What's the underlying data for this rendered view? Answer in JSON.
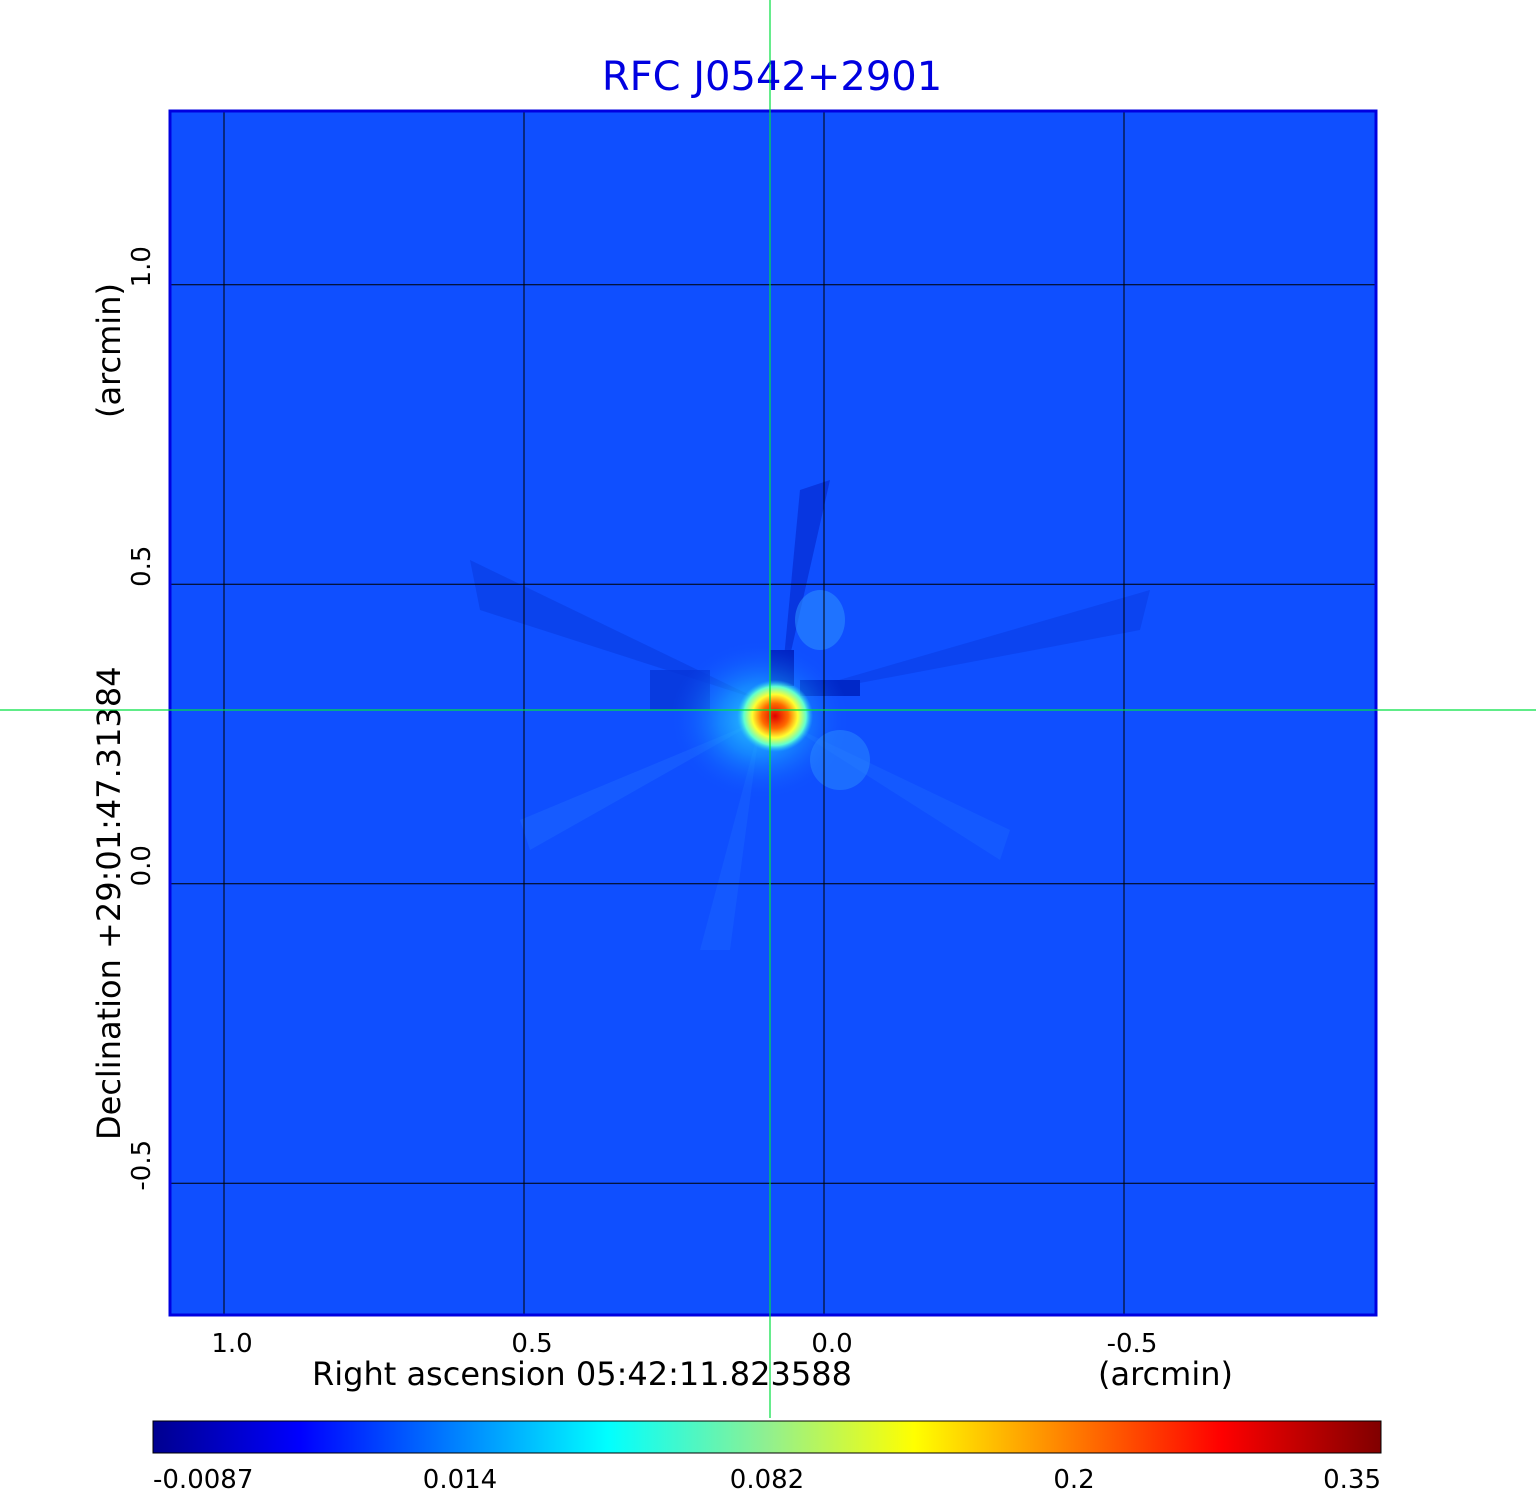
{
  "chart_data": {
    "type": "heatmap",
    "title": "RFC J0542+2901",
    "xlabel": "Right ascension  05:42:11.823588",
    "xunit": "(arcmin)",
    "ylabel": "Declination  +29:01:47.31384",
    "yunit": "(arcmin)",
    "xlim": [
      1.09,
      -0.92
    ],
    "ylim": [
      -0.72,
      1.29
    ],
    "x_ticks": [
      {
        "value": 1.0,
        "label": "1.0"
      },
      {
        "value": 0.5,
        "label": "0.5"
      },
      {
        "value": 0.0,
        "label": "0.0"
      },
      {
        "value": -0.5,
        "label": "-0.5"
      }
    ],
    "y_ticks": [
      {
        "value": 1.0,
        "label": "1.0"
      },
      {
        "value": 0.5,
        "label": "0.5"
      },
      {
        "value": 0.0,
        "label": "0.0"
      },
      {
        "value": -0.5,
        "label": "-0.5"
      }
    ],
    "grid": true,
    "crosshair": {
      "x": 0.09,
      "y": 0.29,
      "color": "#00e040"
    },
    "source_peak": {
      "x": 0.09,
      "y": 0.28,
      "value": 0.35
    },
    "colorbar": {
      "ticks": [
        "-0.0087",
        "0.014",
        "0.082",
        "0.2",
        "0.35"
      ],
      "colormap": "jet",
      "orientation": "horizontal",
      "position": "bottom"
    },
    "colors": {
      "background": "#0f4fff",
      "title": "#0000e0",
      "frame": "#0000e0",
      "crosshair": "#00e040"
    }
  }
}
